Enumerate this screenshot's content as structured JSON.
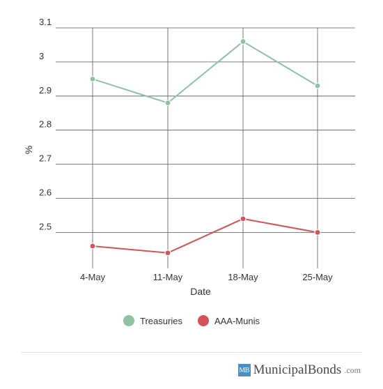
{
  "chart_data": {
    "type": "line",
    "categories": [
      "4-May",
      "11-May",
      "18-May",
      "25-May"
    ],
    "series": [
      {
        "name": "Treasuries",
        "color": "#8dc3a1",
        "values": [
          2.95,
          2.88,
          3.06,
          2.93
        ]
      },
      {
        "name": "AAA-Munis",
        "color": "#d65156",
        "values": [
          2.46,
          2.44,
          2.54,
          2.5
        ]
      }
    ],
    "y_ticks": [
      "2.5",
      "2.6",
      "2.7",
      "2.8",
      "2.9",
      "3",
      "3.1"
    ],
    "ylim": [
      2.4,
      3.1
    ],
    "xlabel": "Date",
    "ylabel": "%",
    "grid": true,
    "legend_position": "bottom"
  },
  "legend": {
    "items": [
      {
        "label": "Treasuries",
        "color": "#8dc3a1"
      },
      {
        "label": "AAA-Munis",
        "color": "#d65156"
      }
    ]
  },
  "brand": {
    "logo_text": "MB",
    "name": "MunicipalBonds",
    "tld": ".com",
    "logo_color": "#4b8ec3"
  }
}
